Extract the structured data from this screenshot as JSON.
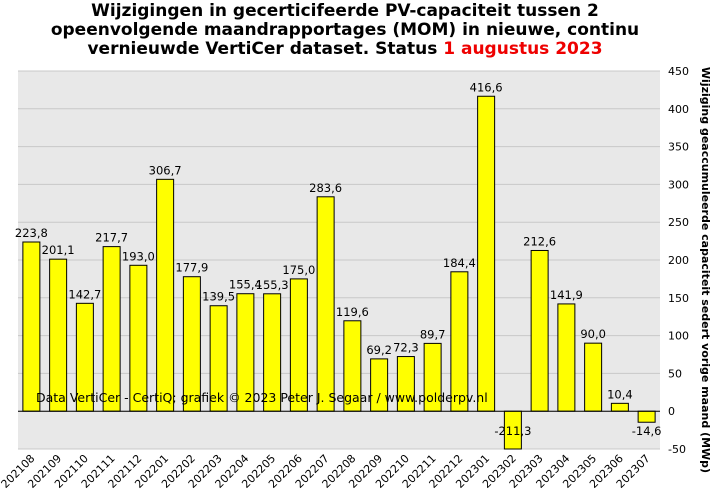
{
  "title": {
    "line1": "Wijzigingen in gecerticifeerde PV-capaciteit tussen 2",
    "line2": "opeenvolgende maandrapportages (MOM) in nieuwe, continu",
    "line3_prefix": "vernieuwde VertiCer dataset. Status ",
    "line3_date": "1 augustus 2023",
    "date_color": "#ee0000"
  },
  "credit": "Data VertiCer - CertiQ; grafiek © 2023 Peter J. Segaar / www.polderpv.nl",
  "chart_data": {
    "type": "bar",
    "categories": [
      "202108",
      "202109",
      "202110",
      "202111",
      "202112",
      "202201",
      "202202",
      "202203",
      "202204",
      "202205",
      "202206",
      "202207",
      "202208",
      "202209",
      "202210",
      "202211",
      "202212",
      "202301",
      "202302",
      "202303",
      "202304",
      "202305",
      "202306",
      "202307"
    ],
    "values": [
      223.8,
      201.1,
      142.7,
      217.7,
      193.0,
      306.7,
      177.9,
      139.5,
      155.4,
      155.3,
      175.0,
      283.6,
      119.6,
      69.2,
      72.3,
      89.7,
      184.4,
      416.6,
      -211.3,
      212.6,
      141.9,
      90.0,
      10.4,
      -14.6
    ],
    "value_labels": [
      "223,8",
      "201,1",
      "142,7",
      "217,7",
      "193,0",
      "306,7",
      "177,9",
      "139,5",
      "155,4",
      "155,3",
      "175,0",
      "283,6",
      "119,6",
      "69,2",
      "72,3",
      "89,7",
      "184,4",
      "416,6",
      "-211,3",
      "212,6",
      "141,9",
      "90,0",
      "10,4",
      "-14,6"
    ],
    "ylabel": "Wijziging geaccumuleerde capaciteit sedert vorige maand (MWp)",
    "ylim": [
      -50,
      450
    ],
    "yticks": [
      -50,
      0,
      50,
      100,
      150,
      200,
      250,
      300,
      350,
      400,
      450
    ],
    "y_axis_side": "right",
    "grid": true,
    "bar_color": "#ffff00",
    "background_color": "#e8e8e8"
  }
}
